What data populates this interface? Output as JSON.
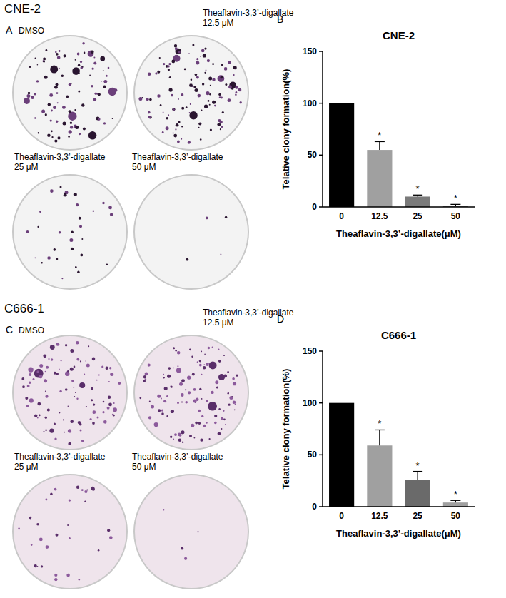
{
  "headers": [
    "CNE-2",
    "C666-1"
  ],
  "panel_letters": [
    "A",
    "B",
    "C",
    "D"
  ],
  "plates": [
    {
      "labels": [
        "DMSO",
        "Theaflavin-3,3’-digallate 12.5 μM",
        "Theaflavin-3,3’-digallate 25 μM",
        "Theaflavin-3,3’-digallate 50 μM"
      ]
    },
    {
      "labels": [
        "DMSO",
        "Theaflavin-3,3’-digallate 12.5 μM",
        "Theaflavin-3,3’-digallate 25 μM",
        "Theaflavin-3,3’-digallate 50 μM"
      ]
    }
  ],
  "chart_data": [
    {
      "type": "bar",
      "title": "CNE-2",
      "y_label": "Telative clony formation(%)",
      "x_label": "Theaflavin-3,3’-digallate(μM)",
      "categories": [
        "0",
        "12.5",
        "25",
        "50"
      ],
      "values": [
        100,
        55,
        10,
        1
      ],
      "errors": [
        0,
        8,
        1.5,
        1.5
      ],
      "significance": [
        null,
        "*",
        "*",
        "*"
      ],
      "colors": [
        "#000000",
        "#a0a0a0",
        "#7a7a7a",
        "#7a7a7a"
      ],
      "ylim": [
        0,
        150
      ],
      "yticks": [
        0,
        50,
        100,
        150
      ],
      "grid": false
    },
    {
      "type": "bar",
      "title": "C666-1",
      "y_label": "Telative clony formation(%)",
      "x_label": "Theaflavin-3,3’-digallate(μM)",
      "categories": [
        "0",
        "12.5",
        "25",
        "50"
      ],
      "values": [
        100,
        59,
        26,
        4
      ],
      "errors": [
        0,
        15,
        8,
        2
      ],
      "significance": [
        null,
        "*",
        "*",
        "*"
      ],
      "colors": [
        "#000000",
        "#a0a0a0",
        "#6a6a6a",
        "#a0a0a0"
      ],
      "ylim": [
        0,
        150
      ],
      "yticks": [
        0,
        50,
        100,
        150
      ],
      "grid": false
    }
  ]
}
